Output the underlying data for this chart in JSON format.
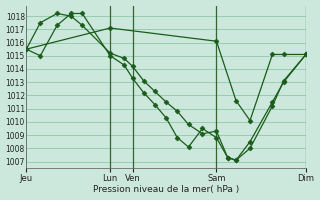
{
  "xlabel": "Pression niveau de la mer( hPa )",
  "background_color": "#cce8dc",
  "grid_color": "#99ccb3",
  "line_color": "#1a5c1a",
  "vline_color": "#336633",
  "ylim": [
    1006.5,
    1018.8
  ],
  "yticks": [
    1007,
    1008,
    1009,
    1010,
    1011,
    1012,
    1013,
    1014,
    1015,
    1016,
    1017,
    1018
  ],
  "xlim": [
    0,
    10.0
  ],
  "xtick_positions": [
    0.0,
    3.0,
    3.8,
    6.8,
    10.0
  ],
  "xtick_labels": [
    "Jeu",
    "Lun",
    "Ven",
    "Sam",
    "Dim"
  ],
  "vlines": [
    3.0,
    3.8,
    6.8,
    10.0
  ],
  "series": [
    {
      "x": [
        0.0,
        0.5,
        1.1,
        1.6,
        2.0,
        3.0,
        3.5,
        3.8,
        4.2,
        4.6,
        5.0,
        5.4,
        5.8,
        6.3,
        6.8,
        7.2,
        7.5,
        8.0,
        8.8,
        9.2,
        10.0
      ],
      "y": [
        1015.5,
        1017.5,
        1018.2,
        1018.0,
        1017.3,
        1015.2,
        1014.8,
        1014.2,
        1013.1,
        1012.3,
        1011.5,
        1010.8,
        1009.8,
        1009.1,
        1009.3,
        1007.3,
        1007.1,
        1008.0,
        1011.2,
        1013.1,
        1015.1
      ]
    },
    {
      "x": [
        0.0,
        0.5,
        1.1,
        1.6,
        2.0,
        3.0,
        3.5,
        3.8,
        4.2,
        4.6,
        5.0,
        5.4,
        5.8,
        6.3,
        6.8,
        7.2,
        7.5,
        8.0,
        8.8,
        9.2,
        10.0
      ],
      "y": [
        1015.5,
        1015.0,
        1017.3,
        1018.2,
        1018.2,
        1015.0,
        1014.3,
        1013.3,
        1012.2,
        1011.3,
        1010.3,
        1008.8,
        1008.1,
        1009.5,
        1008.8,
        1007.3,
        1007.1,
        1008.5,
        1011.5,
        1013.0,
        1015.1
      ]
    },
    {
      "x": [
        0.0,
        3.0,
        6.8,
        7.5,
        8.0,
        8.8,
        9.2,
        10.0
      ],
      "y": [
        1015.5,
        1017.1,
        1016.1,
        1011.6,
        1010.1,
        1015.1,
        1015.1,
        1015.1
      ]
    }
  ]
}
